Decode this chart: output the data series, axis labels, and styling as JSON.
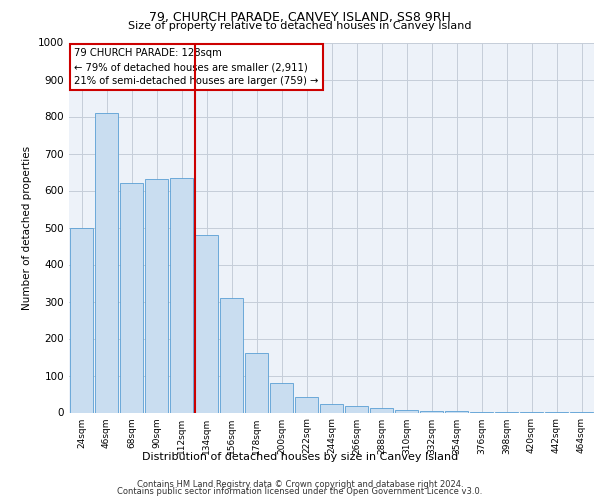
{
  "title1": "79, CHURCH PARADE, CANVEY ISLAND, SS8 9RH",
  "title2": "Size of property relative to detached houses in Canvey Island",
  "xlabel": "Distribution of detached houses by size in Canvey Island",
  "ylabel": "Number of detached properties",
  "footer1": "Contains HM Land Registry data © Crown copyright and database right 2024.",
  "footer2": "Contains public sector information licensed under the Open Government Licence v3.0.",
  "annotation_line1": "79 CHURCH PARADE: 128sqm",
  "annotation_line2": "← 79% of detached houses are smaller (2,911)",
  "annotation_line3": "21% of semi-detached houses are larger (759) →",
  "bar_color": "#c9ddf0",
  "bar_edge_color": "#5a9fd4",
  "vline_color": "#cc0000",
  "annotation_box_color": "#cc0000",
  "categories": [
    "24sqm",
    "46sqm",
    "68sqm",
    "90sqm",
    "112sqm",
    "134sqm",
    "156sqm",
    "178sqm",
    "200sqm",
    "222sqm",
    "244sqm",
    "266sqm",
    "288sqm",
    "310sqm",
    "332sqm",
    "354sqm",
    "376sqm",
    "398sqm",
    "420sqm",
    "442sqm",
    "464sqm"
  ],
  "values": [
    500,
    810,
    620,
    630,
    635,
    480,
    310,
    160,
    80,
    42,
    22,
    18,
    12,
    8,
    5,
    3,
    2,
    1,
    1,
    1,
    1
  ],
  "ylim": [
    0,
    1000
  ],
  "yticks": [
    0,
    100,
    200,
    300,
    400,
    500,
    600,
    700,
    800,
    900,
    1000
  ],
  "vline_x_index": 4.55,
  "bg_color": "#edf2f9",
  "grid_color": "#c5cdd9",
  "fig_bg": "#ffffff"
}
